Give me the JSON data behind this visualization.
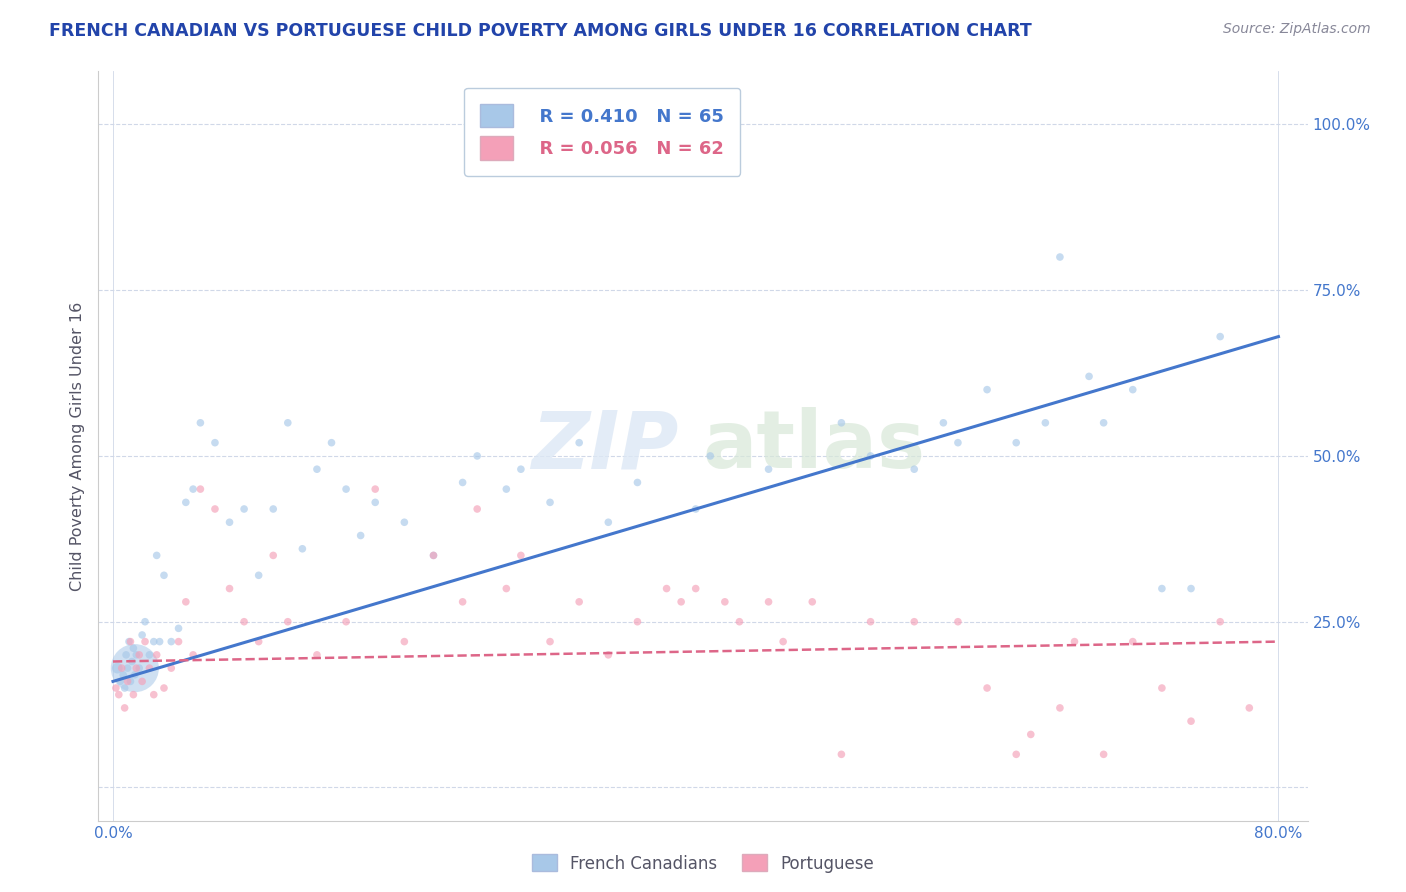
{
  "title": "FRENCH CANADIAN VS PORTUGUESE CHILD POVERTY AMONG GIRLS UNDER 16 CORRELATION CHART",
  "source": "Source: ZipAtlas.com",
  "ylabel": "Child Poverty Among Girls Under 16",
  "x_tick_labels": [
    "0.0%",
    "",
    "",
    "",
    "",
    "",
    "",
    "",
    "80.0%"
  ],
  "x_tick_values": [
    0,
    10,
    20,
    30,
    40,
    50,
    60,
    70,
    80
  ],
  "y_tick_labels": [
    "",
    "25.0%",
    "50.0%",
    "75.0%",
    "100.0%"
  ],
  "y_tick_values": [
    0,
    25,
    50,
    75,
    100
  ],
  "xlim": [
    -1,
    82
  ],
  "ylim": [
    -5,
    108
  ],
  "legend_r": [
    "R = 0.410",
    "R = 0.056"
  ],
  "legend_n": [
    "N = 65",
    "N = 62"
  ],
  "fc_color": "#a8c8e8",
  "pt_color": "#f4a0b8",
  "fc_line_color": "#4477cc",
  "pt_line_color": "#dd6688",
  "watermark_text": "ZIPatlas",
  "fc_trend_x0": 0,
  "fc_trend_y0": 16,
  "fc_trend_x1": 80,
  "fc_trend_y1": 68,
  "pt_trend_x0": 0,
  "pt_trend_y0": 19,
  "pt_trend_x1": 80,
  "pt_trend_y1": 22,
  "background_color": "#ffffff",
  "grid_color": "#d0d8e8",
  "title_color": "#2244aa",
  "ylabel_color": "#555566",
  "tick_label_color": "#4477cc",
  "source_color": "#888899",
  "french_canadian_x": [
    0.3,
    0.5,
    0.7,
    0.8,
    0.9,
    1.0,
    1.1,
    1.2,
    1.3,
    1.4,
    1.5,
    1.6,
    1.8,
    2.0,
    2.2,
    2.5,
    2.8,
    3.0,
    3.2,
    3.5,
    4.0,
    4.5,
    5.0,
    5.5,
    6.0,
    7.0,
    8.0,
    9.0,
    10.0,
    11.0,
    12.0,
    13.0,
    14.0,
    15.0,
    16.0,
    17.0,
    18.0,
    20.0,
    22.0,
    24.0,
    25.0,
    27.0,
    28.0,
    30.0,
    32.0,
    34.0,
    36.0,
    40.0,
    41.0,
    45.0,
    50.0,
    52.0,
    55.0,
    57.0,
    58.0,
    60.0,
    62.0,
    64.0,
    65.0,
    67.0,
    68.0,
    70.0,
    72.0,
    74.0,
    76.0
  ],
  "french_canadian_y": [
    18,
    16,
    17,
    15,
    20,
    18,
    22,
    16,
    19,
    21,
    17,
    20,
    18,
    23,
    25,
    20,
    22,
    35,
    22,
    32,
    22,
    24,
    43,
    45,
    55,
    52,
    40,
    42,
    32,
    42,
    55,
    36,
    48,
    52,
    45,
    38,
    43,
    40,
    35,
    46,
    50,
    45,
    48,
    43,
    52,
    40,
    46,
    42,
    50,
    48,
    55,
    50,
    48,
    55,
    52,
    60,
    52,
    55,
    80,
    62,
    55,
    60,
    30,
    30,
    68
  ],
  "french_canadian_sizes": [
    60,
    30,
    30,
    30,
    30,
    30,
    30,
    30,
    30,
    30,
    30,
    30,
    30,
    30,
    30,
    30,
    30,
    30,
    30,
    30,
    30,
    30,
    30,
    30,
    30,
    30,
    30,
    30,
    30,
    30,
    30,
    30,
    30,
    30,
    30,
    30,
    30,
    30,
    30,
    30,
    30,
    30,
    30,
    30,
    30,
    30,
    30,
    30,
    30,
    30,
    30,
    30,
    30,
    30,
    30,
    30,
    30,
    30,
    30,
    30,
    30,
    30,
    30,
    30,
    30
  ],
  "large_fc_x": 1.5,
  "large_fc_y": 18,
  "large_fc_size": 1200,
  "portuguese_x": [
    0.2,
    0.4,
    0.6,
    0.8,
    1.0,
    1.2,
    1.4,
    1.6,
    1.8,
    2.0,
    2.2,
    2.5,
    2.8,
    3.0,
    3.5,
    4.0,
    4.5,
    5.0,
    5.5,
    6.0,
    7.0,
    8.0,
    9.0,
    10.0,
    11.0,
    12.0,
    14.0,
    16.0,
    18.0,
    20.0,
    22.0,
    24.0,
    25.0,
    27.0,
    28.0,
    30.0,
    32.0,
    34.0,
    36.0,
    38.0,
    39.0,
    40.0,
    42.0,
    43.0,
    45.0,
    46.0,
    48.0,
    50.0,
    52.0,
    55.0,
    58.0,
    60.0,
    62.0,
    63.0,
    65.0,
    66.0,
    68.0,
    70.0,
    72.0,
    74.0,
    76.0,
    78.0
  ],
  "portuguese_y": [
    15,
    14,
    18,
    12,
    16,
    22,
    14,
    18,
    20,
    16,
    22,
    18,
    14,
    20,
    15,
    18,
    22,
    28,
    20,
    45,
    42,
    30,
    25,
    22,
    35,
    25,
    20,
    25,
    45,
    22,
    35,
    28,
    42,
    30,
    35,
    22,
    28,
    20,
    25,
    30,
    28,
    30,
    28,
    25,
    28,
    22,
    28,
    5,
    25,
    25,
    25,
    15,
    5,
    8,
    12,
    22,
    5,
    22,
    15,
    10,
    25,
    12
  ],
  "portuguese_sizes": [
    30,
    30,
    30,
    30,
    30,
    30,
    30,
    30,
    30,
    30,
    30,
    30,
    30,
    30,
    30,
    30,
    30,
    30,
    30,
    30,
    30,
    30,
    30,
    30,
    30,
    30,
    30,
    30,
    30,
    30,
    30,
    30,
    30,
    30,
    30,
    30,
    30,
    30,
    30,
    30,
    30,
    30,
    30,
    30,
    30,
    30,
    30,
    30,
    30,
    30,
    30,
    30,
    30,
    30,
    30,
    30,
    30,
    30,
    30,
    30,
    30,
    30
  ]
}
